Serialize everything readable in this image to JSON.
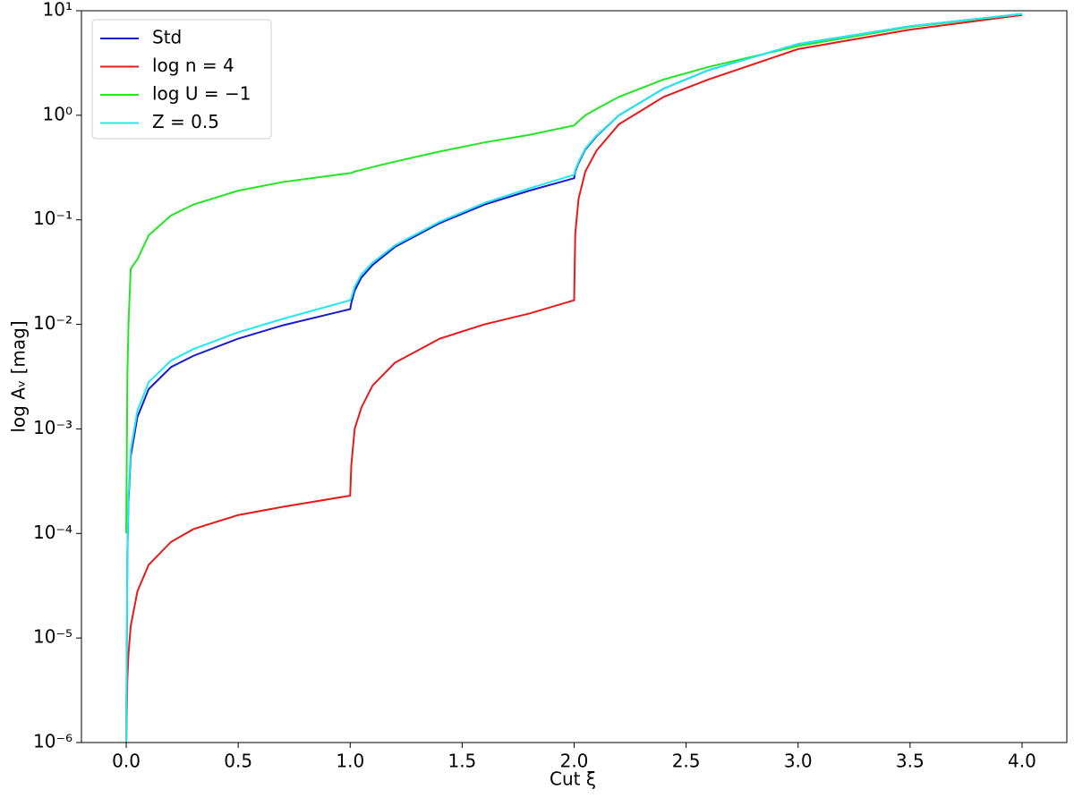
{
  "chart_data": {
    "type": "line",
    "xlabel": "Cut ξ",
    "ylabel": "log Aᵥ [mag]",
    "x": [
      0,
      0.005,
      0.01,
      0.02,
      0.05,
      0.1,
      0.2,
      0.3,
      0.5,
      0.7,
      1.0,
      1.005,
      1.02,
      1.05,
      1.1,
      1.2,
      1.4,
      1.6,
      1.8,
      2.0,
      2.005,
      2.02,
      2.05,
      2.1,
      2.2,
      2.4,
      2.6,
      3.0,
      3.5,
      4.0
    ],
    "series": [
      {
        "name": "Std",
        "color": "#1a1acd",
        "values": [
          1e-06,
          6.3e-05,
          0.0002,
          0.00055,
          0.0013,
          0.0024,
          0.0039,
          0.005,
          0.0073,
          0.0098,
          0.014,
          0.016,
          0.021,
          0.028,
          0.037,
          0.055,
          0.093,
          0.14,
          0.19,
          0.25,
          0.29,
          0.35,
          0.47,
          0.63,
          1.0,
          1.8,
          2.7,
          4.8,
          7.1,
          9.3
        ]
      },
      {
        "name": "log n = 4",
        "color": "#e81818",
        "values": [
          1e-06,
          4e-06,
          7e-06,
          1.3e-05,
          2.8e-05,
          5e-05,
          8.3e-05,
          0.00011,
          0.00015,
          0.00018,
          0.00023,
          0.00045,
          0.001,
          0.0016,
          0.0026,
          0.0043,
          0.0073,
          0.01,
          0.0127,
          0.017,
          0.074,
          0.16,
          0.29,
          0.46,
          0.82,
          1.5,
          2.2,
          4.3,
          6.6,
          9.1
        ]
      },
      {
        "name": "log U = −1",
        "color": "#22e622",
        "values": [
          0.0001,
          0.0032,
          0.01,
          0.034,
          0.042,
          0.071,
          0.11,
          0.14,
          0.19,
          0.23,
          0.28,
          0.28,
          0.29,
          0.3,
          0.32,
          0.36,
          0.45,
          0.55,
          0.65,
          0.8,
          0.82,
          0.88,
          1.0,
          1.15,
          1.5,
          2.2,
          2.9,
          4.6,
          7.0,
          9.3
        ]
      },
      {
        "name": "Z = 0.5",
        "color": "#22e8f0",
        "values": [
          1e-06,
          7e-05,
          0.00023,
          0.00063,
          0.0015,
          0.0028,
          0.0045,
          0.0058,
          0.0084,
          0.0113,
          0.017,
          0.018,
          0.023,
          0.03,
          0.039,
          0.057,
          0.096,
          0.145,
          0.2,
          0.27,
          0.3,
          0.36,
          0.48,
          0.64,
          1.0,
          1.8,
          2.7,
          4.8,
          7.1,
          9.3
        ]
      }
    ],
    "xlim": [
      -0.2,
      4.2
    ],
    "xticks": [
      {
        "value": 0,
        "label": "0.0"
      },
      0.5,
      {
        "value": 1,
        "label": "1.0"
      },
      1.5,
      {
        "value": 2,
        "label": "2.0"
      },
      2.5,
      {
        "value": 3,
        "label": "3.0"
      },
      3.5,
      {
        "value": 4,
        "label": "4.0"
      }
    ],
    "ylim": [
      1e-06,
      10
    ],
    "yscale": "log",
    "yticks": [
      {
        "value": 1e-06,
        "label": "10⁻⁶"
      },
      {
        "value": 1e-05,
        "label": "10⁻⁵"
      },
      {
        "value": 0.0001,
        "label": "10⁻⁴"
      },
      {
        "value": 0.001,
        "label": "10⁻³"
      },
      {
        "value": 0.01,
        "label": "10⁻²"
      },
      {
        "value": 0.1,
        "label": "10⁻¹"
      },
      {
        "value": 1,
        "label": "10⁰"
      },
      {
        "value": 10,
        "label": "10¹"
      }
    ],
    "grid": false,
    "legend": "upper left"
  }
}
